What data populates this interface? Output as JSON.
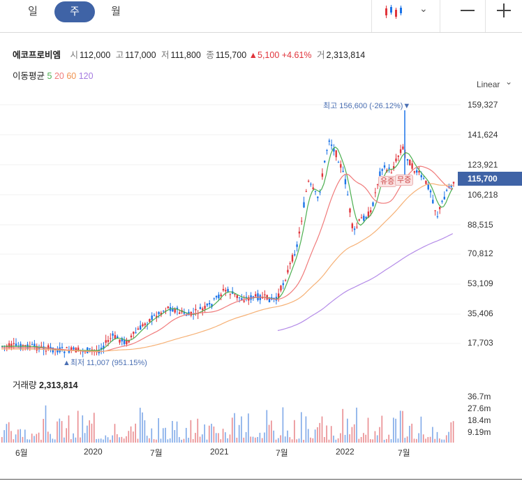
{
  "tabs": [
    {
      "label": "일",
      "active": false
    },
    {
      "label": "주",
      "active": true
    },
    {
      "label": "월",
      "active": false
    }
  ],
  "toolbar": {
    "chart_type_icon": "candlestick-icon",
    "dropdown_icon": "chevron-down-icon",
    "zoom_out_icon": "minus-icon",
    "zoom_in_icon": "plus-icon"
  },
  "stock": {
    "name": "에코프로비엠",
    "open_label": "시",
    "open": "112,000",
    "high_label": "고",
    "high": "117,000",
    "low_label": "저",
    "low": "111,800",
    "close_label": "종",
    "close": "115,700",
    "change": "▲5,100",
    "change_pct": "+4.61%",
    "volume_label": "거",
    "volume": "2,313,814"
  },
  "ma": {
    "label": "이동평균",
    "p5": "5",
    "p20": "20",
    "p60": "60",
    "p120": "120",
    "colors": {
      "ma5": "#4caf50",
      "ma20": "#f07a7a",
      "ma60": "#f6b176",
      "ma120": "#b48be8"
    }
  },
  "scale_mode": "Linear",
  "yaxis": [
    "159,327",
    "141,624",
    "123,921",
    "106,218",
    "88,515",
    "70,812",
    "53,109",
    "35,406",
    "17,703"
  ],
  "current_price_tag": "115,700",
  "annotations": {
    "high": "최고 156,600 (-26.12%)▼",
    "low": "▲최저 11,007 (951.15%)",
    "badge1": "유증",
    "badge2": "무증"
  },
  "volume": {
    "label": "거래량",
    "value": "2,313,814",
    "axis": [
      "36.7m",
      "27.6m",
      "18.4m",
      "9.19m"
    ]
  },
  "xaxis": [
    "6월",
    "2020",
    "7월",
    "2021",
    "7월",
    "2022",
    "7월"
  ],
  "colors": {
    "up": "#e0343b",
    "down": "#1a73e8",
    "accent": "#3f63a6"
  }
}
